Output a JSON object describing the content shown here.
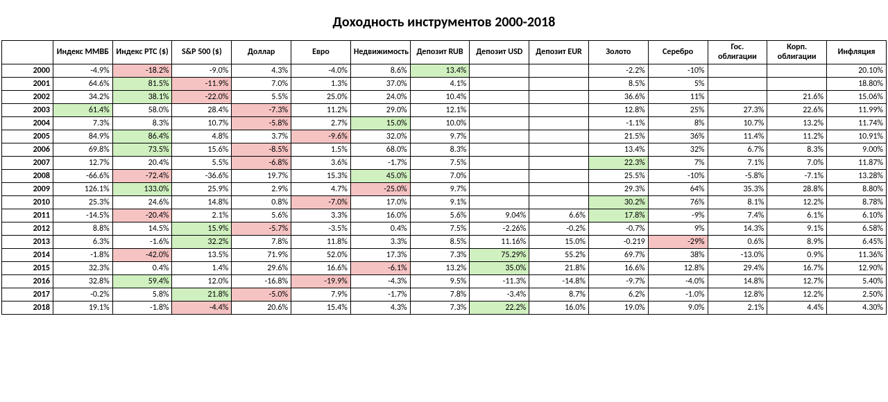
{
  "title": "Доходность инструментов 2000-2018",
  "colors": {
    "green": "#d0f0c0",
    "red": "#f6c3c3",
    "white": "#ffffff"
  },
  "columns": [
    "Индекс ММВБ",
    "Индекс РТС ($)",
    "S&P 500 ($)",
    "Доллар",
    "Евро",
    "Недвижимость",
    "Депозит RUB",
    "Депозит USD",
    "Депозит EUR",
    "Золото",
    "Серебро",
    "Гос. облигации",
    "Корп. облигации",
    "Инфляция"
  ],
  "rows": [
    {
      "year": "2000",
      "cells": [
        {
          "v": "-4.9%",
          "hl": ""
        },
        {
          "v": "-18.2%",
          "hl": "red"
        },
        {
          "v": "-9.0%",
          "hl": ""
        },
        {
          "v": "4.3%",
          "hl": ""
        },
        {
          "v": "-4.0%",
          "hl": ""
        },
        {
          "v": "8.6%",
          "hl": ""
        },
        {
          "v": "13.4%",
          "hl": "green"
        },
        {
          "v": "",
          "hl": ""
        },
        {
          "v": "",
          "hl": ""
        },
        {
          "v": "-2.2%",
          "hl": ""
        },
        {
          "v": "-10%",
          "hl": ""
        },
        {
          "v": "",
          "hl": ""
        },
        {
          "v": "",
          "hl": ""
        },
        {
          "v": "20.10%",
          "hl": ""
        }
      ]
    },
    {
      "year": "2001",
      "cells": [
        {
          "v": "64.6%",
          "hl": ""
        },
        {
          "v": "81.5%",
          "hl": "green"
        },
        {
          "v": "-11.9%",
          "hl": "red"
        },
        {
          "v": "7.0%",
          "hl": ""
        },
        {
          "v": "1.3%",
          "hl": ""
        },
        {
          "v": "37.0%",
          "hl": ""
        },
        {
          "v": "4.1%",
          "hl": ""
        },
        {
          "v": "",
          "hl": ""
        },
        {
          "v": "",
          "hl": ""
        },
        {
          "v": "8.5%",
          "hl": ""
        },
        {
          "v": "5%",
          "hl": ""
        },
        {
          "v": "",
          "hl": ""
        },
        {
          "v": "",
          "hl": ""
        },
        {
          "v": "18.80%",
          "hl": ""
        }
      ]
    },
    {
      "year": "2002",
      "cells": [
        {
          "v": "34.2%",
          "hl": ""
        },
        {
          "v": "38.1%",
          "hl": "green"
        },
        {
          "v": "-22.0%",
          "hl": "red"
        },
        {
          "v": "5.5%",
          "hl": ""
        },
        {
          "v": "25.0%",
          "hl": ""
        },
        {
          "v": "24.0%",
          "hl": ""
        },
        {
          "v": "10.4%",
          "hl": ""
        },
        {
          "v": "",
          "hl": ""
        },
        {
          "v": "",
          "hl": ""
        },
        {
          "v": "36.6%",
          "hl": ""
        },
        {
          "v": "11%",
          "hl": ""
        },
        {
          "v": "",
          "hl": ""
        },
        {
          "v": "21.6%",
          "hl": ""
        },
        {
          "v": "15.06%",
          "hl": ""
        }
      ]
    },
    {
      "year": "2003",
      "cells": [
        {
          "v": "61.4%",
          "hl": "green"
        },
        {
          "v": "58.0%",
          "hl": ""
        },
        {
          "v": "28.4%",
          "hl": ""
        },
        {
          "v": "-7.3%",
          "hl": "red"
        },
        {
          "v": "11.2%",
          "hl": ""
        },
        {
          "v": "29.0%",
          "hl": ""
        },
        {
          "v": "12.1%",
          "hl": ""
        },
        {
          "v": "",
          "hl": ""
        },
        {
          "v": "",
          "hl": ""
        },
        {
          "v": "12.8%",
          "hl": ""
        },
        {
          "v": "25%",
          "hl": ""
        },
        {
          "v": "27.3%",
          "hl": ""
        },
        {
          "v": "22.6%",
          "hl": ""
        },
        {
          "v": "11.99%",
          "hl": ""
        }
      ]
    },
    {
      "year": "2004",
      "cells": [
        {
          "v": "7.3%",
          "hl": ""
        },
        {
          "v": "8.3%",
          "hl": ""
        },
        {
          "v": "10.7%",
          "hl": ""
        },
        {
          "v": "-5.8%",
          "hl": "red"
        },
        {
          "v": "2.7%",
          "hl": ""
        },
        {
          "v": "15.0%",
          "hl": "green"
        },
        {
          "v": "10.0%",
          "hl": ""
        },
        {
          "v": "",
          "hl": ""
        },
        {
          "v": "",
          "hl": ""
        },
        {
          "v": "-1.1%",
          "hl": ""
        },
        {
          "v": "8%",
          "hl": ""
        },
        {
          "v": "10.7%",
          "hl": ""
        },
        {
          "v": "13.2%",
          "hl": ""
        },
        {
          "v": "11.74%",
          "hl": ""
        }
      ]
    },
    {
      "year": "2005",
      "cells": [
        {
          "v": "84.9%",
          "hl": ""
        },
        {
          "v": "86.4%",
          "hl": "green"
        },
        {
          "v": "4.8%",
          "hl": ""
        },
        {
          "v": "3.7%",
          "hl": ""
        },
        {
          "v": "-9.6%",
          "hl": "red"
        },
        {
          "v": "32.0%",
          "hl": ""
        },
        {
          "v": "9.7%",
          "hl": ""
        },
        {
          "v": "",
          "hl": ""
        },
        {
          "v": "",
          "hl": ""
        },
        {
          "v": "21.5%",
          "hl": ""
        },
        {
          "v": "36%",
          "hl": ""
        },
        {
          "v": "11.4%",
          "hl": ""
        },
        {
          "v": "11.2%",
          "hl": ""
        },
        {
          "v": "10.91%",
          "hl": ""
        }
      ]
    },
    {
      "year": "2006",
      "cells": [
        {
          "v": "69.8%",
          "hl": ""
        },
        {
          "v": "73.5%",
          "hl": "green"
        },
        {
          "v": "15.6%",
          "hl": ""
        },
        {
          "v": "-8.5%",
          "hl": "red"
        },
        {
          "v": "1.5%",
          "hl": ""
        },
        {
          "v": "68.0%",
          "hl": ""
        },
        {
          "v": "8.3%",
          "hl": ""
        },
        {
          "v": "",
          "hl": ""
        },
        {
          "v": "",
          "hl": ""
        },
        {
          "v": "13.4%",
          "hl": ""
        },
        {
          "v": "32%",
          "hl": ""
        },
        {
          "v": "6.7%",
          "hl": ""
        },
        {
          "v": "8.3%",
          "hl": ""
        },
        {
          "v": "9.00%",
          "hl": ""
        }
      ]
    },
    {
      "year": "2007",
      "cells": [
        {
          "v": "12.7%",
          "hl": ""
        },
        {
          "v": "20.4%",
          "hl": ""
        },
        {
          "v": "5.5%",
          "hl": ""
        },
        {
          "v": "-6.8%",
          "hl": "red"
        },
        {
          "v": "3.6%",
          "hl": ""
        },
        {
          "v": "-1.7%",
          "hl": ""
        },
        {
          "v": "7.5%",
          "hl": ""
        },
        {
          "v": "",
          "hl": ""
        },
        {
          "v": "",
          "hl": ""
        },
        {
          "v": "22.3%",
          "hl": "green"
        },
        {
          "v": "7%",
          "hl": ""
        },
        {
          "v": "7.1%",
          "hl": ""
        },
        {
          "v": "7.0%",
          "hl": ""
        },
        {
          "v": "11.87%",
          "hl": ""
        }
      ]
    },
    {
      "year": "2008",
      "cells": [
        {
          "v": "-66.6%",
          "hl": ""
        },
        {
          "v": "-72.4%",
          "hl": "red"
        },
        {
          "v": "-36.6%",
          "hl": ""
        },
        {
          "v": "19.7%",
          "hl": ""
        },
        {
          "v": "15.3%",
          "hl": ""
        },
        {
          "v": "45.0%",
          "hl": "green"
        },
        {
          "v": "7.0%",
          "hl": ""
        },
        {
          "v": "",
          "hl": ""
        },
        {
          "v": "",
          "hl": ""
        },
        {
          "v": "25.5%",
          "hl": ""
        },
        {
          "v": "-10%",
          "hl": ""
        },
        {
          "v": "-5.8%",
          "hl": ""
        },
        {
          "v": "-7.1%",
          "hl": ""
        },
        {
          "v": "13.28%",
          "hl": ""
        }
      ]
    },
    {
      "year": "2009",
      "cells": [
        {
          "v": "126.1%",
          "hl": ""
        },
        {
          "v": "133.0%",
          "hl": "green"
        },
        {
          "v": "25.9%",
          "hl": ""
        },
        {
          "v": "2.9%",
          "hl": ""
        },
        {
          "v": "4.7%",
          "hl": ""
        },
        {
          "v": "-25.0%",
          "hl": "red"
        },
        {
          "v": "9.7%",
          "hl": ""
        },
        {
          "v": "",
          "hl": ""
        },
        {
          "v": "",
          "hl": ""
        },
        {
          "v": "29.3%",
          "hl": ""
        },
        {
          "v": "64%",
          "hl": ""
        },
        {
          "v": "35.3%",
          "hl": ""
        },
        {
          "v": "28.8%",
          "hl": ""
        },
        {
          "v": "8.80%",
          "hl": ""
        }
      ]
    },
    {
      "year": "2010",
      "cells": [
        {
          "v": "25.3%",
          "hl": ""
        },
        {
          "v": "24.6%",
          "hl": ""
        },
        {
          "v": "14.8%",
          "hl": ""
        },
        {
          "v": "0.8%",
          "hl": ""
        },
        {
          "v": "-7.0%",
          "hl": "red"
        },
        {
          "v": "17.0%",
          "hl": ""
        },
        {
          "v": "9.1%",
          "hl": ""
        },
        {
          "v": "",
          "hl": ""
        },
        {
          "v": "",
          "hl": ""
        },
        {
          "v": "30.2%",
          "hl": "green"
        },
        {
          "v": "76%",
          "hl": ""
        },
        {
          "v": "8.1%",
          "hl": ""
        },
        {
          "v": "12.2%",
          "hl": ""
        },
        {
          "v": "8.78%",
          "hl": ""
        }
      ]
    },
    {
      "year": "2011",
      "cells": [
        {
          "v": "-14.5%",
          "hl": ""
        },
        {
          "v": "-20.4%",
          "hl": "red"
        },
        {
          "v": "2.1%",
          "hl": ""
        },
        {
          "v": "5.6%",
          "hl": ""
        },
        {
          "v": "3.3%",
          "hl": ""
        },
        {
          "v": "16.0%",
          "hl": ""
        },
        {
          "v": "5.6%",
          "hl": ""
        },
        {
          "v": "9.04%",
          "hl": ""
        },
        {
          "v": "6.6%",
          "hl": ""
        },
        {
          "v": "17.8%",
          "hl": "green"
        },
        {
          "v": "-9%",
          "hl": ""
        },
        {
          "v": "7.4%",
          "hl": ""
        },
        {
          "v": "6.1%",
          "hl": ""
        },
        {
          "v": "6.10%",
          "hl": ""
        }
      ]
    },
    {
      "year": "2012",
      "cells": [
        {
          "v": "8.8%",
          "hl": ""
        },
        {
          "v": "14.5%",
          "hl": ""
        },
        {
          "v": "15.9%",
          "hl": "green"
        },
        {
          "v": "-5.7%",
          "hl": "red"
        },
        {
          "v": "-3.5%",
          "hl": ""
        },
        {
          "v": "0.4%",
          "hl": ""
        },
        {
          "v": "7.5%",
          "hl": ""
        },
        {
          "v": "-2.26%",
          "hl": ""
        },
        {
          "v": "-0.2%",
          "hl": ""
        },
        {
          "v": "-0.7%",
          "hl": ""
        },
        {
          "v": "9%",
          "hl": ""
        },
        {
          "v": "14.3%",
          "hl": ""
        },
        {
          "v": "9.1%",
          "hl": ""
        },
        {
          "v": "6.58%",
          "hl": ""
        }
      ]
    },
    {
      "year": "2013",
      "cells": [
        {
          "v": "6.3%",
          "hl": ""
        },
        {
          "v": "-1.6%",
          "hl": ""
        },
        {
          "v": "32.2%",
          "hl": "green"
        },
        {
          "v": "7.8%",
          "hl": ""
        },
        {
          "v": "11.8%",
          "hl": ""
        },
        {
          "v": "3.3%",
          "hl": ""
        },
        {
          "v": "8.5%",
          "hl": ""
        },
        {
          "v": "11.16%",
          "hl": ""
        },
        {
          "v": "15.0%",
          "hl": ""
        },
        {
          "v": "-0.219",
          "hl": ""
        },
        {
          "v": "-29%",
          "hl": "red"
        },
        {
          "v": "0.6%",
          "hl": ""
        },
        {
          "v": "8.9%",
          "hl": ""
        },
        {
          "v": "6.45%",
          "hl": ""
        }
      ]
    },
    {
      "year": "2014",
      "cells": [
        {
          "v": "-1.8%",
          "hl": ""
        },
        {
          "v": "-42.0%",
          "hl": "red"
        },
        {
          "v": "13.5%",
          "hl": ""
        },
        {
          "v": "71.9%",
          "hl": ""
        },
        {
          "v": "52.0%",
          "hl": ""
        },
        {
          "v": "17.3%",
          "hl": ""
        },
        {
          "v": "7.3%",
          "hl": ""
        },
        {
          "v": "75.29%",
          "hl": "green"
        },
        {
          "v": "55.2%",
          "hl": ""
        },
        {
          "v": "69.7%",
          "hl": ""
        },
        {
          "v": "38%",
          "hl": ""
        },
        {
          "v": "-13.0%",
          "hl": ""
        },
        {
          "v": "0.9%",
          "hl": ""
        },
        {
          "v": "11.36%",
          "hl": ""
        }
      ]
    },
    {
      "year": "2015",
      "cells": [
        {
          "v": "32.3%",
          "hl": ""
        },
        {
          "v": "0.4%",
          "hl": ""
        },
        {
          "v": "1.4%",
          "hl": ""
        },
        {
          "v": "29.6%",
          "hl": ""
        },
        {
          "v": "16.6%",
          "hl": ""
        },
        {
          "v": "-6.1%",
          "hl": "red"
        },
        {
          "v": "13.2%",
          "hl": ""
        },
        {
          "v": "35.0%",
          "hl": "green"
        },
        {
          "v": "21.8%",
          "hl": ""
        },
        {
          "v": "16.6%",
          "hl": ""
        },
        {
          "v": "12.8%",
          "hl": ""
        },
        {
          "v": "29.4%",
          "hl": ""
        },
        {
          "v": "16.7%",
          "hl": ""
        },
        {
          "v": "12.90%",
          "hl": ""
        }
      ]
    },
    {
      "year": "2016",
      "cells": [
        {
          "v": "32.8%",
          "hl": ""
        },
        {
          "v": "59.4%",
          "hl": "green"
        },
        {
          "v": "12.0%",
          "hl": ""
        },
        {
          "v": "-16.8%",
          "hl": ""
        },
        {
          "v": "-19.9%",
          "hl": "red"
        },
        {
          "v": "-4.3%",
          "hl": ""
        },
        {
          "v": "9.5%",
          "hl": ""
        },
        {
          "v": "-11.3%",
          "hl": ""
        },
        {
          "v": "-14.8%",
          "hl": ""
        },
        {
          "v": "-9.7%",
          "hl": ""
        },
        {
          "v": "-4.0%",
          "hl": ""
        },
        {
          "v": "14.8%",
          "hl": ""
        },
        {
          "v": "12.7%",
          "hl": ""
        },
        {
          "v": "5.40%",
          "hl": ""
        }
      ]
    },
    {
      "year": "2017",
      "cells": [
        {
          "v": "-0.2%",
          "hl": ""
        },
        {
          "v": "5.8%",
          "hl": ""
        },
        {
          "v": "21.8%",
          "hl": "green"
        },
        {
          "v": "-5.0%",
          "hl": "red"
        },
        {
          "v": "7.9%",
          "hl": ""
        },
        {
          "v": "-1.7%",
          "hl": ""
        },
        {
          "v": "7.8%",
          "hl": ""
        },
        {
          "v": "-3.4%",
          "hl": ""
        },
        {
          "v": "8.7%",
          "hl": ""
        },
        {
          "v": "6.2%",
          "hl": ""
        },
        {
          "v": "-1.0%",
          "hl": ""
        },
        {
          "v": "12.8%",
          "hl": ""
        },
        {
          "v": "12.2%",
          "hl": ""
        },
        {
          "v": "2.50%",
          "hl": ""
        }
      ]
    },
    {
      "year": "2018",
      "cells": [
        {
          "v": "19.1%",
          "hl": ""
        },
        {
          "v": "-1.8%",
          "hl": ""
        },
        {
          "v": "-4.4%",
          "hl": "red"
        },
        {
          "v": "20.6%",
          "hl": ""
        },
        {
          "v": "15.4%",
          "hl": ""
        },
        {
          "v": "4.3%",
          "hl": ""
        },
        {
          "v": "7.3%",
          "hl": ""
        },
        {
          "v": "22.2%",
          "hl": "green"
        },
        {
          "v": "16.0%",
          "hl": ""
        },
        {
          "v": "19.0%",
          "hl": ""
        },
        {
          "v": "9.0%",
          "hl": ""
        },
        {
          "v": "2.1%",
          "hl": ""
        },
        {
          "v": "4.4%",
          "hl": ""
        },
        {
          "v": "4.30%",
          "hl": ""
        }
      ]
    }
  ]
}
